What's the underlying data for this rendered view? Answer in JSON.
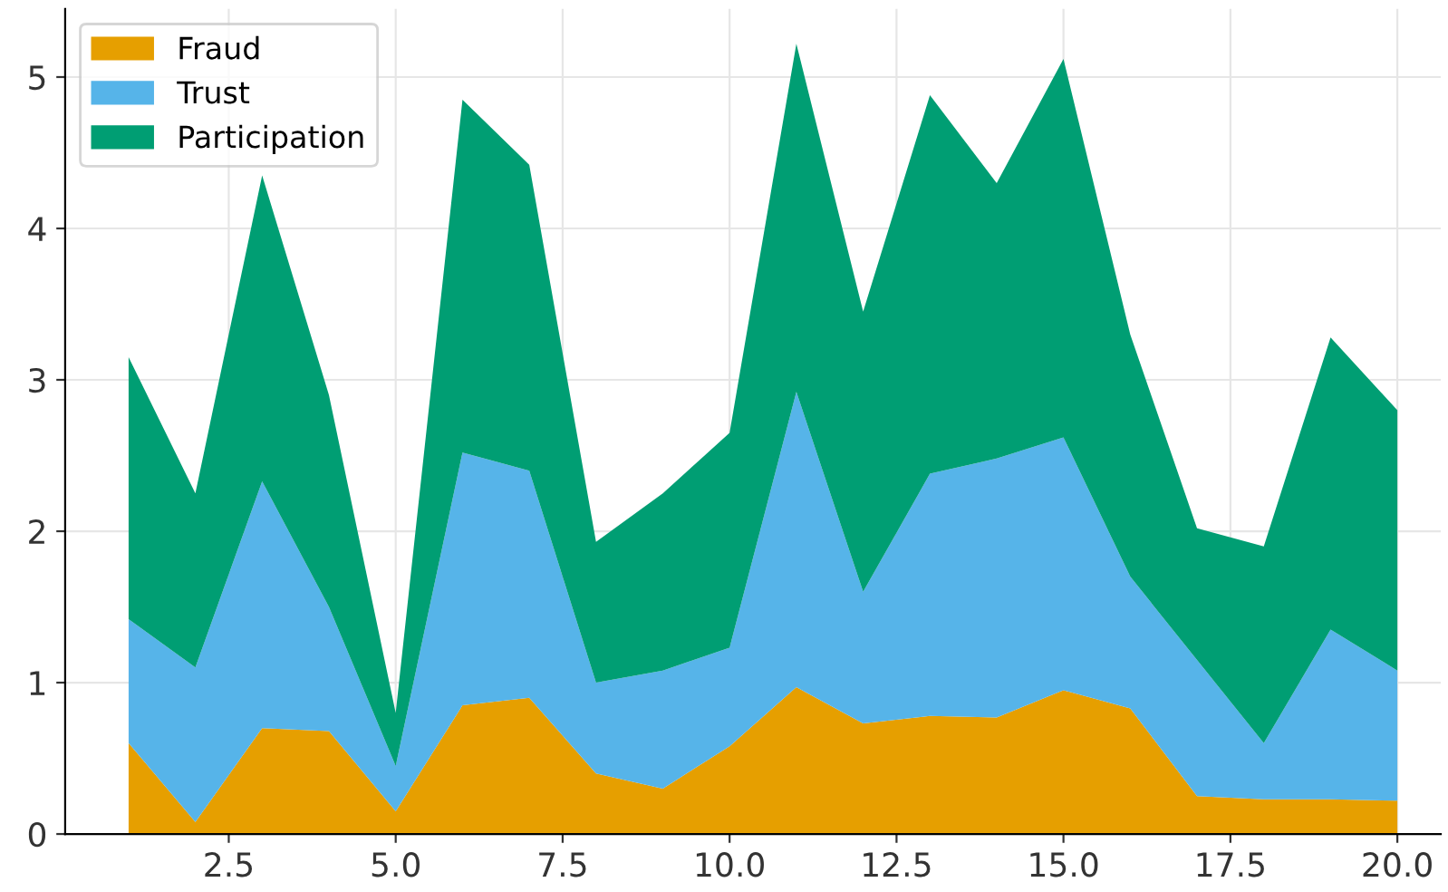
{
  "chart_data": {
    "type": "area",
    "stacked": true,
    "x": [
      1,
      2,
      3,
      4,
      5,
      6,
      7,
      8,
      9,
      10,
      11,
      12,
      13,
      14,
      15,
      16,
      17,
      18,
      19,
      20
    ],
    "series": [
      {
        "name": "Fraud",
        "color": "#e69f00",
        "values": [
          0.6,
          0.08,
          0.7,
          0.68,
          0.15,
          0.85,
          0.9,
          0.4,
          0.3,
          0.58,
          0.97,
          0.73,
          0.78,
          0.77,
          0.95,
          0.83,
          0.25,
          0.23,
          0.23,
          0.22
        ]
      },
      {
        "name": "Trust",
        "color": "#56b4e9",
        "values": [
          0.82,
          1.02,
          1.63,
          0.82,
          0.3,
          1.67,
          1.5,
          0.6,
          0.78,
          0.65,
          1.95,
          0.87,
          1.6,
          1.71,
          1.67,
          0.87,
          0.9,
          0.37,
          1.12,
          0.86
        ]
      },
      {
        "name": "Participation",
        "color": "#009e73",
        "values": [
          1.73,
          1.15,
          2.02,
          1.4,
          0.35,
          2.33,
          2.02,
          0.93,
          1.17,
          1.42,
          2.3,
          1.85,
          2.5,
          1.82,
          2.5,
          1.6,
          0.87,
          1.3,
          1.93,
          1.72
        ]
      }
    ],
    "xlim": [
      0.05,
      20.65
    ],
    "ylim": [
      0,
      5.45
    ],
    "xticks": [
      {
        "value": 2.5,
        "label": "2.5"
      },
      {
        "value": 5,
        "label": "5.0"
      },
      {
        "value": 7.5,
        "label": "7.5"
      },
      {
        "value": 10,
        "label": "10.0"
      },
      {
        "value": 12.5,
        "label": "12.5"
      },
      {
        "value": 15,
        "label": "15.0"
      },
      {
        "value": 17.5,
        "label": "17.5"
      },
      {
        "value": 20,
        "label": "20.0"
      }
    ],
    "yticks": [
      0,
      1,
      2,
      3,
      4,
      5
    ],
    "grid": true,
    "legend": "top left"
  }
}
